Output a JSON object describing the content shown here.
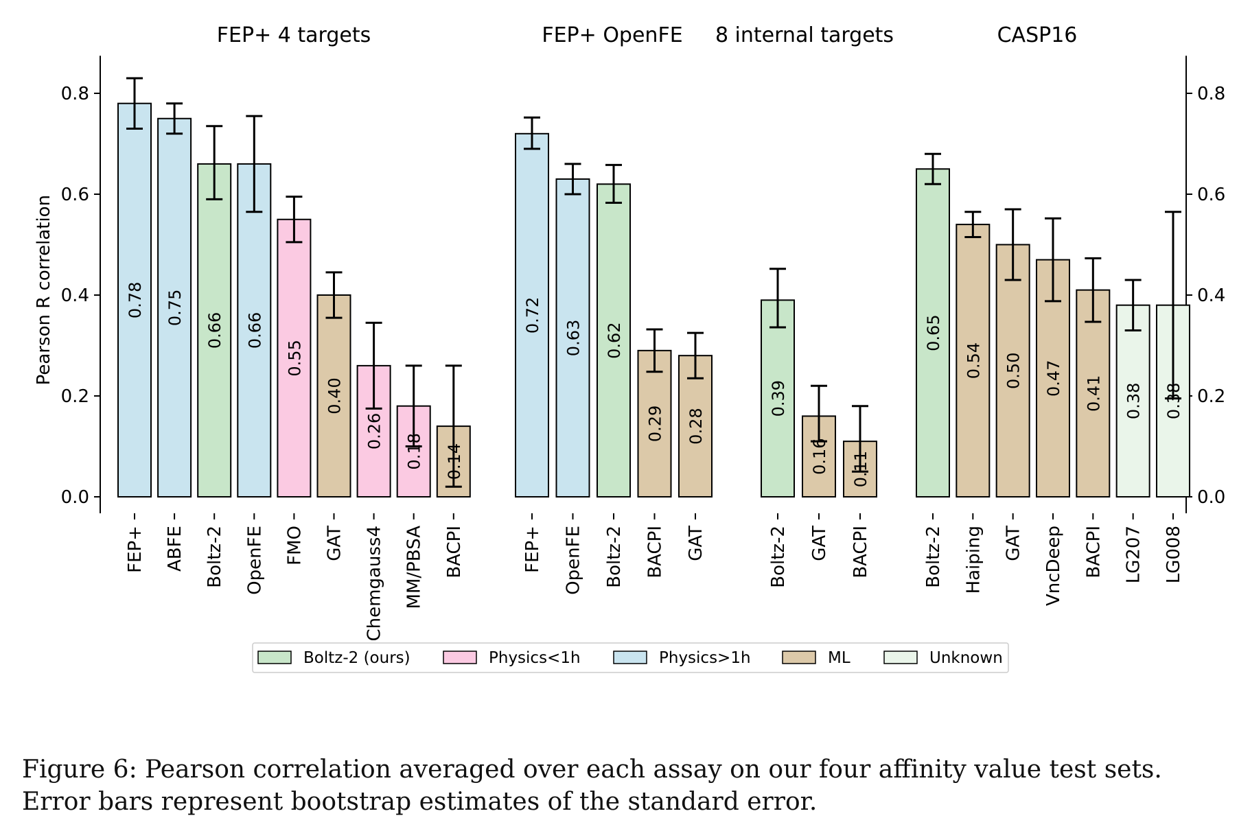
{
  "chart_data": {
    "type": "bar",
    "ylabel": "Pearson R correlation",
    "ylim": [
      0,
      0.88
    ],
    "yticks": [
      "0.0",
      "0.2",
      "0.4",
      "0.6",
      "0.8"
    ],
    "ytick_values": [
      0,
      0.2,
      0.4,
      0.6,
      0.8
    ],
    "grid": false,
    "legend_position": "bottom-center",
    "categories_legend": [
      {
        "name": "Boltz-2 (ours)",
        "key": "boltz",
        "color": "#c8e6c9"
      },
      {
        "name": "Physics<1h",
        "key": "phys_lt",
        "color": "#fbcae2"
      },
      {
        "name": "Physics>1h",
        "key": "phys_gt",
        "color": "#c9e4ef"
      },
      {
        "name": "ML",
        "key": "ml",
        "color": "#dcc9a9"
      },
      {
        "name": "Unknown",
        "key": "unknown",
        "color": "#eaf5ea"
      }
    ],
    "groups": [
      {
        "title": "FEP+ 4 targets",
        "bars": [
          {
            "label": "FEP+",
            "value": 0.78,
            "text": "0.78",
            "err": [
              0.73,
              0.83
            ],
            "cat": "phys_gt"
          },
          {
            "label": "ABFE",
            "value": 0.75,
            "text": "0.75",
            "err": [
              0.72,
              0.78
            ],
            "cat": "phys_gt"
          },
          {
            "label": "Boltz-2",
            "value": 0.66,
            "text": "0.66",
            "err": [
              0.59,
              0.735
            ],
            "cat": "boltz"
          },
          {
            "label": "OpenFE",
            "value": 0.66,
            "text": "0.66",
            "err": [
              0.565,
              0.755
            ],
            "cat": "phys_gt"
          },
          {
            "label": "FMO",
            "value": 0.55,
            "text": "0.55",
            "err": [
              0.505,
              0.595
            ],
            "cat": "phys_lt"
          },
          {
            "label": "GAT",
            "value": 0.4,
            "text": "0.40",
            "err": [
              0.355,
              0.445
            ],
            "cat": "ml"
          },
          {
            "label": "Chemgauss4",
            "value": 0.26,
            "text": "0.26",
            "err": [
              0.175,
              0.345
            ],
            "cat": "phys_lt"
          },
          {
            "label": "MM/PBSA",
            "value": 0.18,
            "text": "0.18",
            "err": [
              0.1,
              0.26
            ],
            "cat": "phys_lt"
          },
          {
            "label": "BACPI",
            "value": 0.14,
            "text": "0.14",
            "err": [
              0.02,
              0.26
            ],
            "cat": "ml"
          }
        ]
      },
      {
        "title": "FEP+ OpenFE",
        "bars": [
          {
            "label": "FEP+",
            "value": 0.72,
            "text": "0.72",
            "err": [
              0.69,
              0.752
            ],
            "cat": "phys_gt"
          },
          {
            "label": "OpenFE",
            "value": 0.63,
            "text": "0.63",
            "err": [
              0.6,
              0.66
            ],
            "cat": "phys_gt"
          },
          {
            "label": "Boltz-2",
            "value": 0.62,
            "text": "0.62",
            "err": [
              0.583,
              0.658
            ],
            "cat": "boltz"
          },
          {
            "label": "BACPI",
            "value": 0.29,
            "text": "0.29",
            "err": [
              0.248,
              0.332
            ],
            "cat": "ml"
          },
          {
            "label": "GAT",
            "value": 0.28,
            "text": "0.28",
            "err": [
              0.235,
              0.325
            ],
            "cat": "ml"
          }
        ]
      },
      {
        "title": "8 internal targets",
        "bars": [
          {
            "label": "Boltz-2",
            "value": 0.39,
            "text": "0.39",
            "err": [
              0.336,
              0.452
            ],
            "cat": "boltz"
          },
          {
            "label": "GAT",
            "value": 0.16,
            "text": "0.16",
            "err": [
              0.11,
              0.22
            ],
            "cat": "ml"
          },
          {
            "label": "BACPI",
            "value": 0.11,
            "text": "0.11",
            "err": [
              0.05,
              0.18
            ],
            "cat": "ml"
          }
        ]
      },
      {
        "title": "CASP16",
        "bars": [
          {
            "label": "Boltz-2",
            "value": 0.65,
            "text": "0.65",
            "err": [
              0.62,
              0.68
            ],
            "cat": "boltz"
          },
          {
            "label": "Haiping",
            "value": 0.54,
            "text": "0.54",
            "err": [
              0.515,
              0.565
            ],
            "cat": "ml"
          },
          {
            "label": "GAT",
            "value": 0.5,
            "text": "0.50",
            "err": [
              0.43,
              0.57
            ],
            "cat": "ml"
          },
          {
            "label": "VncDeep",
            "value": 0.47,
            "text": "0.47",
            "err": [
              0.388,
              0.552
            ],
            "cat": "ml"
          },
          {
            "label": "BACPI",
            "value": 0.41,
            "text": "0.41",
            "err": [
              0.347,
              0.473
            ],
            "cat": "ml"
          },
          {
            "label": "LG207",
            "value": 0.38,
            "text": "0.38",
            "err": [
              0.33,
              0.43
            ],
            "cat": "unknown"
          },
          {
            "label": "LG008",
            "value": 0.38,
            "text": "0.38",
            "err": [
              0.195,
              0.565
            ],
            "cat": "unknown"
          }
        ]
      }
    ]
  },
  "caption": "Figure 6: Pearson correlation averaged over each assay on our four affinity value test sets. Error bars represent bootstrap estimates of the standard error."
}
